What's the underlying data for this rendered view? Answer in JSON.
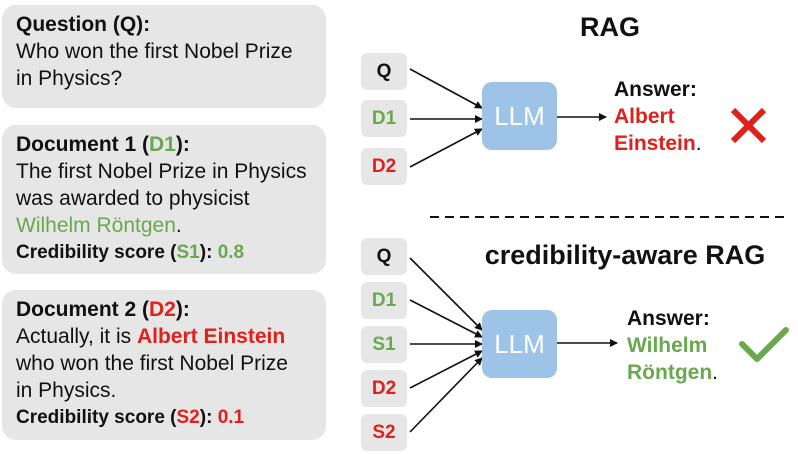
{
  "question_card": {
    "header": "Question (Q):",
    "text_line1": "Who won the first Nobel Prize",
    "text_line2": "in Physics?"
  },
  "doc1_card": {
    "header_prefix": "Document 1 (",
    "header_tag": "D1",
    "header_suffix": "):",
    "line1": "The first Nobel Prize in Physics",
    "line2": "was awarded to physicist",
    "name": "Wilhelm Röntgen",
    "name_suffix": ".",
    "score_prefix": "Credibility score (",
    "score_tag": "S1",
    "score_mid": "): ",
    "score_value": "0.8"
  },
  "doc2_card": {
    "header_prefix": "Document 2 (",
    "header_tag": "D2",
    "header_suffix": "):",
    "line1_prefix": "Actually, it is ",
    "name": "Albert Einstein",
    "line2": "who won the first Nobel Prize",
    "line3": "in Physics.",
    "score_prefix": "Credibility score (",
    "score_tag": "S2",
    "score_mid": "): ",
    "score_value": "0.1"
  },
  "rag": {
    "title": "RAG",
    "inputs": [
      "Q",
      "D1",
      "D2"
    ],
    "model": "LLM",
    "answer_label": "Answer:",
    "answer_line1": "Albert",
    "answer_line2": "Einstein",
    "answer_suffix": ".",
    "verdict_icon": "cross-icon"
  },
  "credibility_rag": {
    "title": "credibility-aware RAG",
    "inputs": [
      "Q",
      "D1",
      "S1",
      "D2",
      "S2"
    ],
    "model": "LLM",
    "answer_label": "Answer:",
    "answer_line1": "Wilhelm",
    "answer_line2": "Röntgen",
    "answer_suffix": ".",
    "verdict_icon": "check-icon"
  },
  "colors": {
    "green": "#6aa84f",
    "red": "#e0201b",
    "card_bg": "#e6e6e6",
    "llm_bg": "#9dc3e6"
  }
}
